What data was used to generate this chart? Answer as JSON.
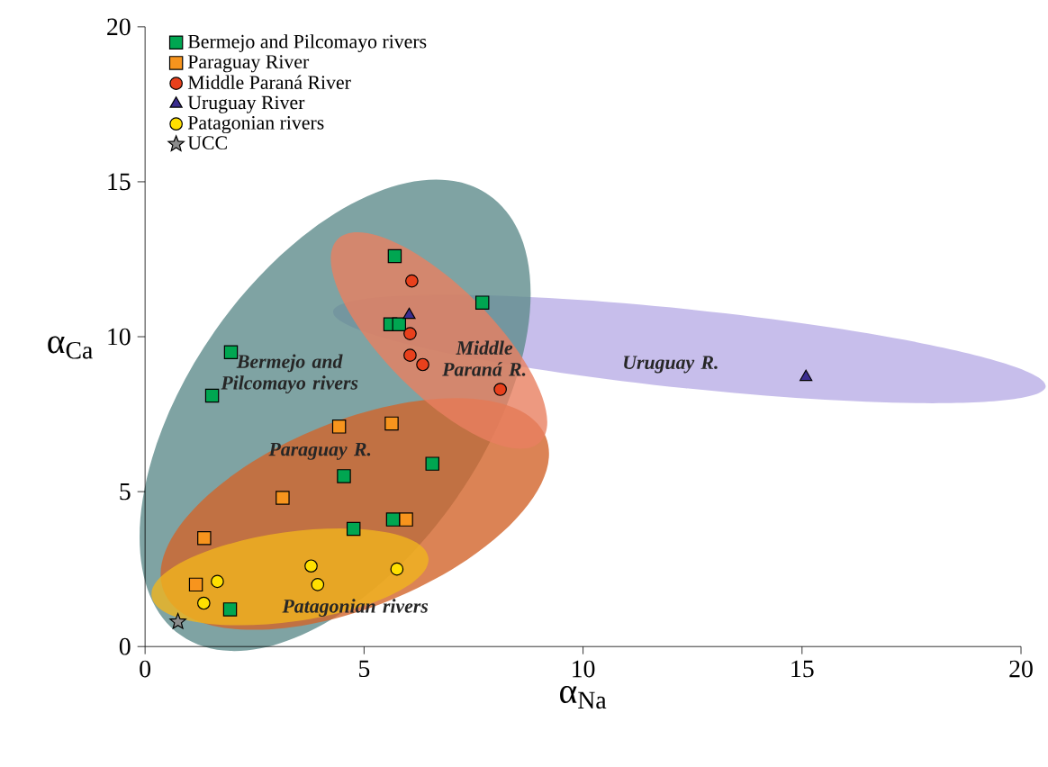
{
  "chart_data": {
    "type": "scatter",
    "xlabel": "α$_{Na}$",
    "ylabel": "α$_{Ca}$",
    "xlim": [
      0,
      20
    ],
    "ylim": [
      0,
      20
    ],
    "xticks": [
      0,
      5,
      10,
      15,
      20
    ],
    "yticks": [
      0,
      5,
      10,
      15,
      20
    ],
    "grid": false,
    "legend": "top left",
    "series": [
      {
        "name": "Bermejo and Pilcomayo rivers",
        "color": "#00a651",
        "marker": "square",
        "x": [
          5.7,
          7.7,
          5.6,
          5.8,
          1.96,
          1.53,
          6.56,
          4.54,
          4.76,
          5.66,
          1.94
        ],
        "values": [
          12.6,
          11.1,
          10.4,
          10.4,
          9.5,
          8.1,
          5.9,
          5.5,
          3.8,
          4.1,
          1.2
        ]
      },
      {
        "name": "Paraguay River",
        "color": "#f7941d",
        "marker": "square",
        "x": [
          4.43,
          5.63,
          3.14,
          1.35,
          5.96,
          1.16
        ],
        "values": [
          7.1,
          7.2,
          4.8,
          3.5,
          4.1,
          2.0
        ]
      },
      {
        "name": "Middle Paraná River",
        "color": "#e8401c",
        "marker": "circle",
        "x": [
          6.09,
          6.05,
          6.05,
          6.34,
          8.11
        ],
        "values": [
          11.8,
          10.1,
          9.4,
          9.1,
          8.3
        ]
      },
      {
        "name": "Uruguay River",
        "color": "#3b2d8f",
        "marker": "triangle",
        "x": [
          6.03,
          15.09
        ],
        "values": [
          10.7,
          8.7
        ]
      },
      {
        "name": "Patagonian rivers",
        "color": "#ffe000",
        "marker": "circle",
        "x": [
          1.65,
          1.34,
          3.79,
          3.94,
          5.75
        ],
        "values": [
          2.1,
          1.4,
          2.6,
          2.0,
          2.5
        ]
      },
      {
        "name": "UCC",
        "color": "#8c8c8c",
        "marker": "star",
        "x": [
          0.75
        ],
        "values": [
          0.8
        ]
      }
    ],
    "annotations": [
      "Bermejo and Pilcomayo rivers",
      "Paraguay R.",
      "Middle Paraná R.",
      "Uruguay R.",
      "Patagonian rivers"
    ]
  }
}
